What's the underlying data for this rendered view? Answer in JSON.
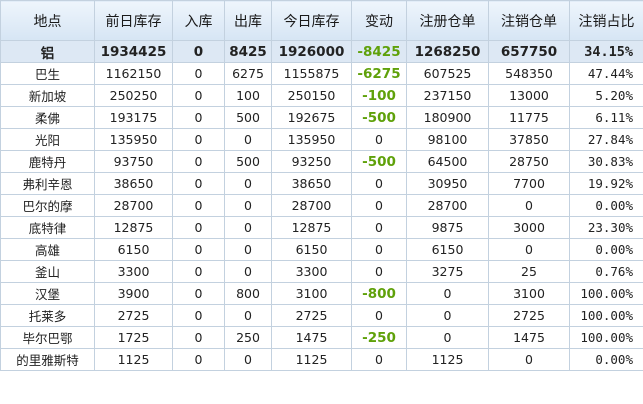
{
  "table": {
    "columns": [
      "地点",
      "前日库存",
      "入库",
      "出库",
      "今日库存",
      "变动",
      "注册仓单",
      "注销仓单",
      "注销占比"
    ],
    "summary": [
      "铝",
      "1934425",
      "0",
      "8425",
      "1926000",
      "-8425",
      "1268250",
      "657750",
      "34.15%"
    ],
    "rows": [
      [
        "巴生",
        "1162150",
        "0",
        "6275",
        "1155875",
        "-6275",
        "607525",
        "548350",
        "47.44%"
      ],
      [
        "新加坡",
        "250250",
        "0",
        "100",
        "250150",
        "-100",
        "237150",
        "13000",
        "5.20%"
      ],
      [
        "柔佛",
        "193175",
        "0",
        "500",
        "192675",
        "-500",
        "180900",
        "11775",
        "6.11%"
      ],
      [
        "光阳",
        "135950",
        "0",
        "0",
        "135950",
        "0",
        "98100",
        "37850",
        "27.84%"
      ],
      [
        "鹿特丹",
        "93750",
        "0",
        "500",
        "93250",
        "-500",
        "64500",
        "28750",
        "30.83%"
      ],
      [
        "弗利辛恩",
        "38650",
        "0",
        "0",
        "38650",
        "0",
        "30950",
        "7700",
        "19.92%"
      ],
      [
        "巴尔的摩",
        "28700",
        "0",
        "0",
        "28700",
        "0",
        "28700",
        "0",
        "0.00%"
      ],
      [
        "底特律",
        "12875",
        "0",
        "0",
        "12875",
        "0",
        "9875",
        "3000",
        "23.30%"
      ],
      [
        "高雄",
        "6150",
        "0",
        "0",
        "6150",
        "0",
        "6150",
        "0",
        "0.00%"
      ],
      [
        "釜山",
        "3300",
        "0",
        "0",
        "3300",
        "0",
        "3275",
        "25",
        "0.76%"
      ],
      [
        "汉堡",
        "3900",
        "0",
        "800",
        "3100",
        "-800",
        "0",
        "3100",
        "100.00%"
      ],
      [
        "托莱多",
        "2725",
        "0",
        "0",
        "2725",
        "0",
        "0",
        "2725",
        "100.00%"
      ],
      [
        "毕尔巴鄂",
        "1725",
        "0",
        "250",
        "1475",
        "-250",
        "0",
        "1475",
        "100.00%"
      ],
      [
        "的里雅斯特",
        "1125",
        "0",
        "0",
        "1125",
        "0",
        "1125",
        "0",
        "0.00%"
      ]
    ]
  }
}
